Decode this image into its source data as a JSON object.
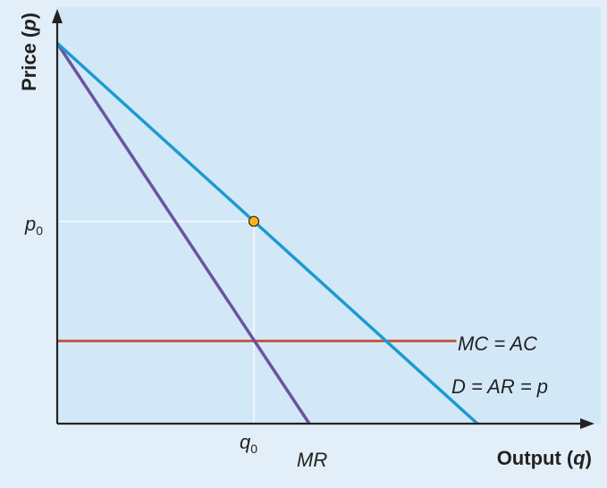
{
  "chart_data": {
    "type": "line",
    "title": "",
    "ylabel": {
      "prefix": "Price (",
      "var": "p",
      "suffix": ")"
    },
    "xlabel": {
      "prefix": "Output (",
      "var": "q",
      "suffix": ")"
    },
    "xlim": [
      0,
      10
    ],
    "ylim": [
      0,
      10
    ],
    "grid": false,
    "series": [
      {
        "name": "D = AR = p",
        "color": "#1b9bd0",
        "x": [
          0,
          10
        ],
        "y": [
          9.48,
          0
        ]
      },
      {
        "name": "MR",
        "color": "#6b53a2",
        "x": [
          0,
          6
        ],
        "y": [
          9.48,
          0
        ]
      },
      {
        "name": "MC = AC",
        "color": "#c65b46",
        "x": [
          0,
          9.5
        ],
        "y": [
          2.06,
          2.06
        ]
      }
    ],
    "equilibrium": {
      "x": 4.68,
      "y": 5.04,
      "color": "#f5b41a"
    },
    "ticks": {
      "p0": {
        "base": "p",
        "sub": "0"
      },
      "q0": {
        "base": "q",
        "sub": "0"
      }
    },
    "annotations": {
      "mc_ac": "MC = AC",
      "demand": "D = AR = p",
      "mr": "MR"
    },
    "colors": {
      "plot_bg": "#d3e8f7",
      "page_bg": "#e3eff8",
      "axis": "#222222",
      "guide": "#ffffff"
    }
  }
}
